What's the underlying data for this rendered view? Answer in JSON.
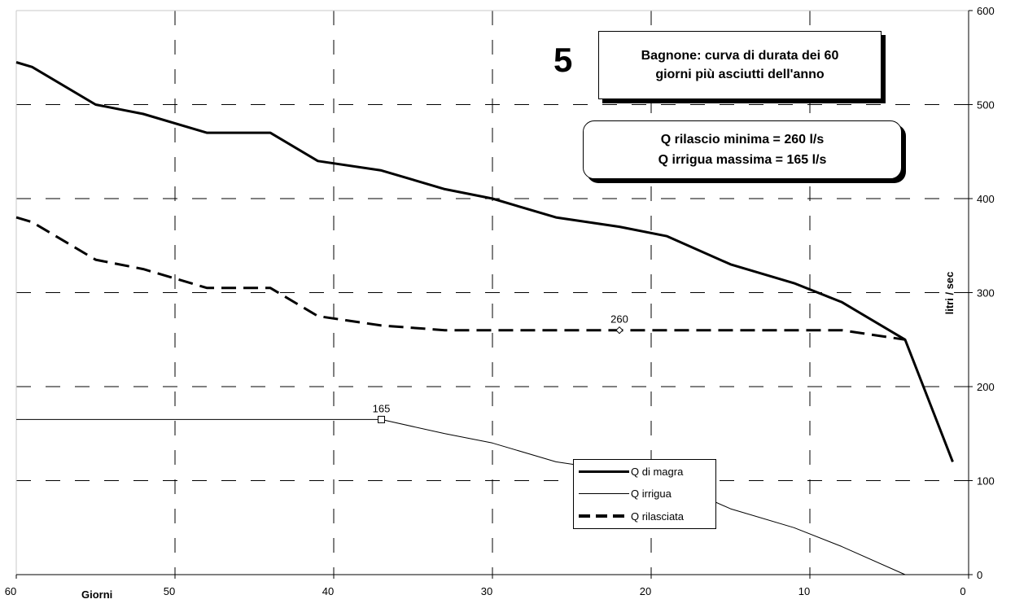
{
  "header": {
    "number": "5",
    "title_line1": "Bagnone: curva di durata dei 60",
    "title_line2": "giorni più asciutti dell'anno"
  },
  "info": {
    "line1": "Q rilascio minima = 260 l/s",
    "line2": "Q irrigua massima = 165 l/s"
  },
  "chart_data": {
    "type": "line",
    "xlabel": "Giorni",
    "ylabel": "litri  /  sec",
    "xlim": [
      60,
      0
    ],
    "ylim": [
      0,
      600
    ],
    "x_ticks": [
      60,
      50,
      40,
      30,
      20,
      10,
      0
    ],
    "y_ticks": [
      0,
      100,
      200,
      300,
      400,
      500,
      600
    ],
    "grid": "dashed",
    "legend_position": "bottom-center",
    "series": [
      {
        "name": "Q di magra",
        "style": "solid-thick",
        "x": [
          60,
          59,
          55,
          52,
          48,
          44,
          41,
          37,
          33,
          30,
          26,
          22,
          19,
          15,
          11,
          8,
          4,
          1
        ],
        "y": [
          545,
          540,
          500,
          490,
          470,
          470,
          440,
          430,
          410,
          400,
          380,
          370,
          360,
          330,
          310,
          290,
          250,
          120
        ]
      },
      {
        "name": "Q irrigua",
        "style": "solid-thin",
        "x": [
          60,
          37,
          33,
          30,
          26,
          22,
          19,
          15,
          11,
          8,
          4
        ],
        "y": [
          165,
          165,
          150,
          140,
          120,
          110,
          100,
          70,
          50,
          30,
          0
        ]
      },
      {
        "name": "Q rilasciata",
        "style": "dashed-thick",
        "x": [
          60,
          59,
          55,
          52,
          48,
          44,
          41,
          37,
          33,
          30,
          26,
          22,
          19,
          15,
          11,
          8,
          4
        ],
        "y": [
          380,
          375,
          335,
          325,
          305,
          305,
          275,
          265,
          260,
          260,
          260,
          260,
          260,
          260,
          260,
          260,
          250
        ]
      }
    ],
    "annotations": [
      {
        "x": 37,
        "y": 165,
        "label": "165",
        "marker": "square"
      },
      {
        "x": 22,
        "y": 260,
        "label": "260",
        "marker": "diamond"
      }
    ]
  }
}
